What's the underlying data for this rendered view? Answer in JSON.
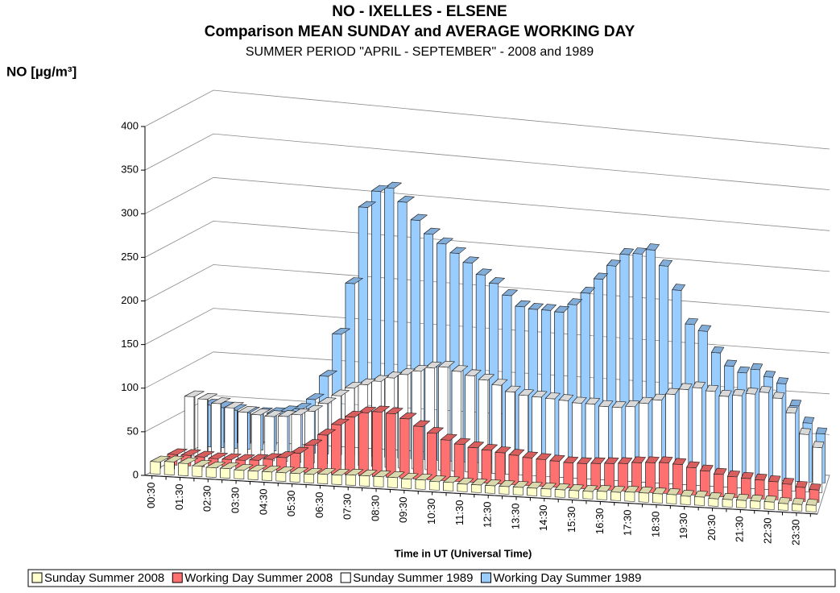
{
  "chart_data": {
    "type": "bar3d",
    "title": "NO - IXELLES - ELSENE",
    "subtitle": "Comparison MEAN SUNDAY and AVERAGE WORKING DAY",
    "subtitle2": "SUMMER PERIOD \"APRIL - SEPTEMBER\" -  2008 and 1989",
    "y_label": "NO  [µg/m³]",
    "x_label": "Time in UT (Universal Time)",
    "categories": [
      "00:30",
      null,
      "01:30",
      null,
      "02:30",
      null,
      "03:30",
      null,
      "04:30",
      null,
      "05:30",
      null,
      "06:30",
      null,
      "07:30",
      null,
      "08:30",
      null,
      "09:30",
      null,
      "10:30",
      null,
      "11:30",
      null,
      "12:30",
      null,
      "13:30",
      null,
      "14:30",
      null,
      "15:30",
      null,
      "16:30",
      null,
      "17:30",
      null,
      "18:30",
      null,
      "19:30",
      null,
      "20:30",
      null,
      "21:30",
      null,
      "22:30",
      null,
      "23:30",
      null
    ],
    "series": [
      {
        "name": "Sunday Summer 2008",
        "color": "#ffffcc",
        "values": [
          14,
          15,
          14,
          12,
          11,
          11,
          10,
          10,
          10,
          10,
          10,
          10,
          11,
          11,
          12,
          12,
          12,
          12,
          11,
          11,
          10,
          10,
          9,
          9,
          9,
          9,
          9,
          9,
          9,
          9,
          9,
          9,
          10,
          10,
          11,
          11,
          11,
          11,
          10,
          10,
          9,
          9,
          9,
          9,
          9,
          8,
          8,
          8
        ]
      },
      {
        "name": "Working Day Summer 2008",
        "color": "#ff7070",
        "values": [
          12,
          12,
          11,
          10,
          10,
          10,
          11,
          13,
          16,
          22,
          32,
          45,
          58,
          68,
          74,
          76,
          75,
          70,
          62,
          55,
          48,
          44,
          41,
          39,
          37,
          35,
          33,
          32,
          31,
          30,
          30,
          31,
          32,
          33,
          35,
          36,
          37,
          36,
          33,
          30,
          27,
          25,
          24,
          23,
          22,
          20,
          17,
          15
        ]
      },
      {
        "name": "Sunday Summer 1989",
        "color": "#ffffff",
        "values": [
          68,
          66,
          62,
          58,
          54,
          52,
          51,
          52,
          55,
          60,
          70,
          80,
          90,
          95,
          100,
          105,
          110,
          115,
          120,
          122,
          118,
          114,
          110,
          105,
          98,
          95,
          94,
          93,
          92,
          90,
          90,
          88,
          88,
          90,
          95,
          100,
          108,
          115,
          118,
          115,
          110,
          112,
          115,
          118,
          112,
          95,
          70,
          55
        ]
      },
      {
        "name": "Working Day Summer 1989",
        "color": "#99ccff",
        "values": [
          48,
          46,
          44,
          42,
          42,
          43,
          46,
          50,
          62,
          90,
          140,
          200,
          290,
          310,
          315,
          300,
          280,
          265,
          255,
          245,
          235,
          222,
          213,
          200,
          188,
          186,
          186,
          185,
          195,
          210,
          228,
          245,
          260,
          262,
          268,
          250,
          222,
          182,
          175,
          150,
          135,
          128,
          133,
          125,
          118,
          92,
          72,
          60
        ]
      }
    ],
    "ylim": [
      0,
      400
    ],
    "yticks": [
      0,
      50,
      100,
      150,
      200,
      250,
      300,
      350,
      400
    ],
    "grid": true
  }
}
